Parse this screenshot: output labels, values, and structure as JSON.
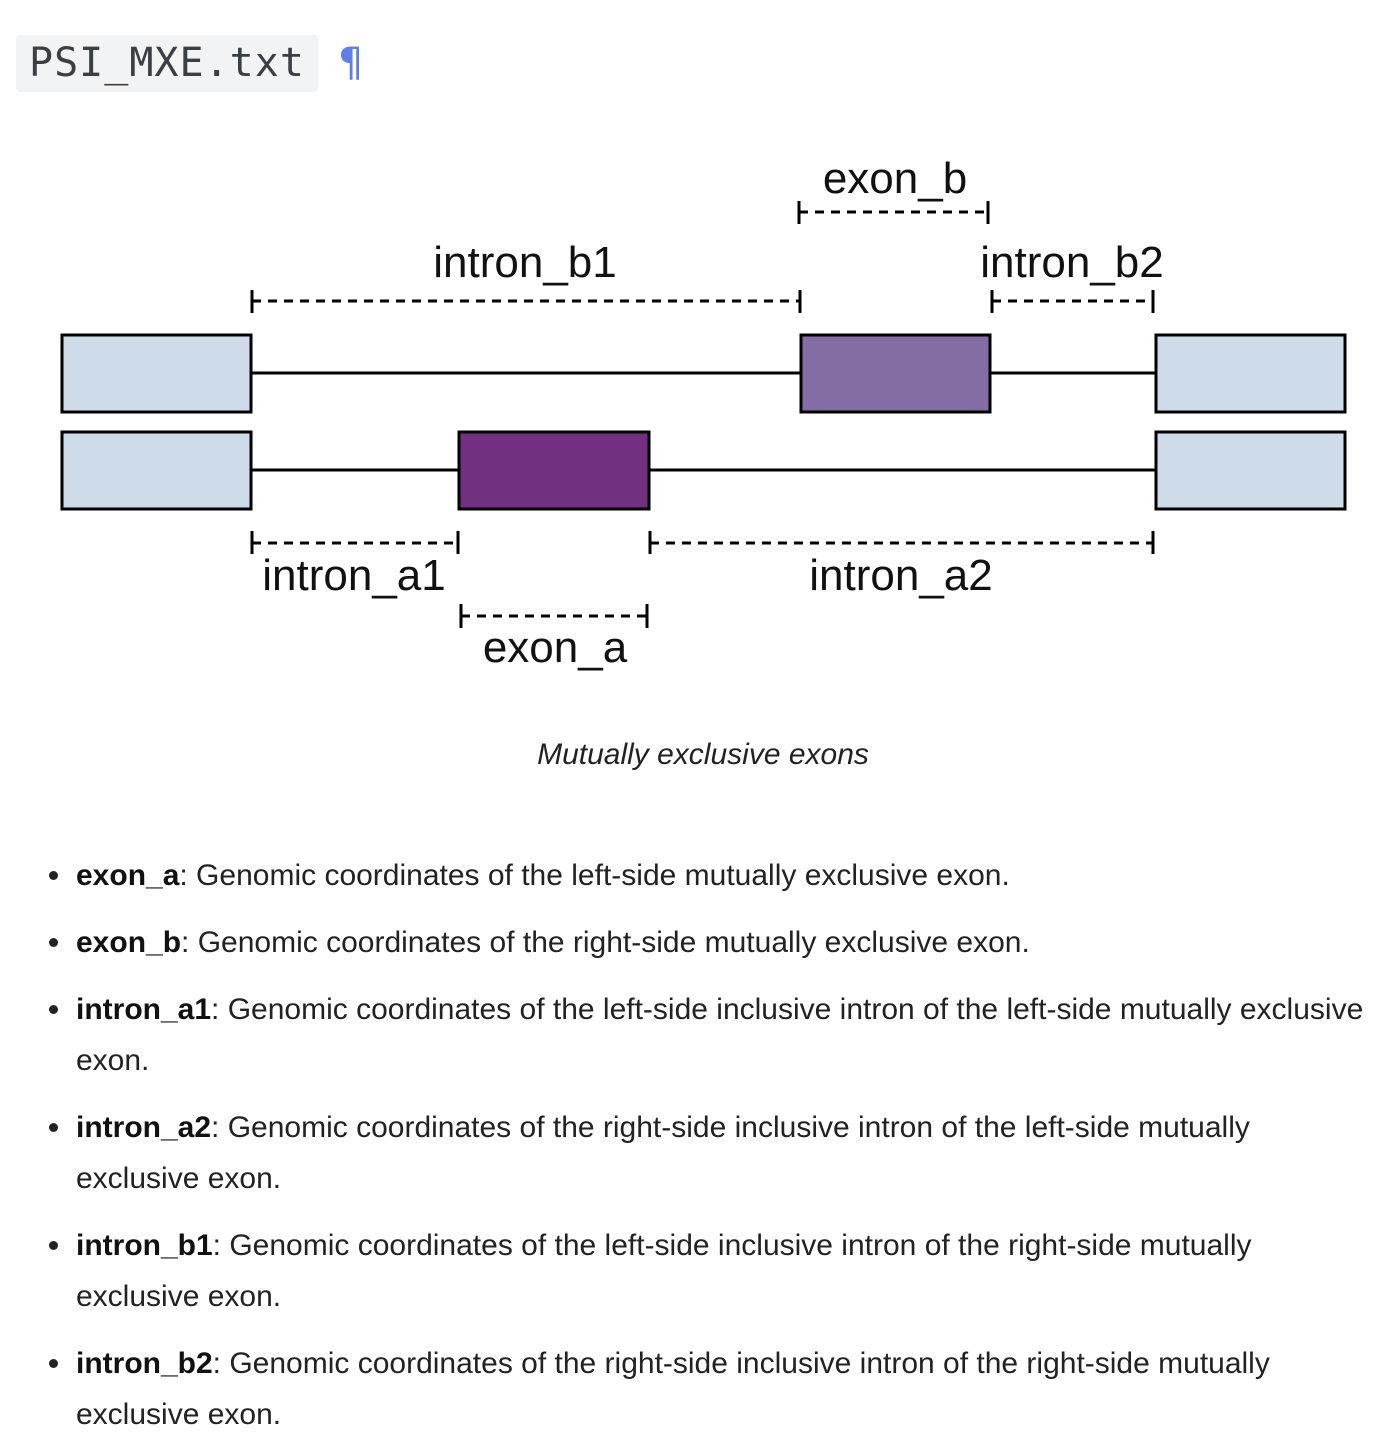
{
  "heading": {
    "filename": "PSI_MXE.txt",
    "anchor_symbol": "¶"
  },
  "diagram": {
    "labels": {
      "exon_b": "exon_b",
      "intron_b1": "intron_b1",
      "intron_b2": "intron_b2",
      "intron_a1": "intron_a1",
      "exon_a": "exon_a",
      "intron_a2": "intron_a2"
    },
    "colors": {
      "constitutive_exon": "#cedbe8",
      "exon_a": "#723180",
      "exon_b": "#836da4",
      "line": "#000000"
    }
  },
  "caption": "Mutually exclusive exons",
  "definitions": [
    {
      "term": "exon_a",
      "text": ": Genomic coordinates of the left-side mutually exclusive exon."
    },
    {
      "term": "exon_b",
      "text": ": Genomic coordinates of the right-side mutually exclusive exon."
    },
    {
      "term": "intron_a1",
      "text": ": Genomic coordinates of the left-side inclusive intron of the left-side mutually exclusive exon."
    },
    {
      "term": "intron_a2",
      "text": ": Genomic coordinates of the right-side inclusive intron of the left-side mutually exclusive exon."
    },
    {
      "term": "intron_b1",
      "text": ": Genomic coordinates of the left-side inclusive intron of the right-side mutually exclusive exon."
    },
    {
      "term": "intron_b2",
      "text": ": Genomic coordinates of the right-side inclusive intron of the right-side mutually exclusive exon."
    }
  ]
}
